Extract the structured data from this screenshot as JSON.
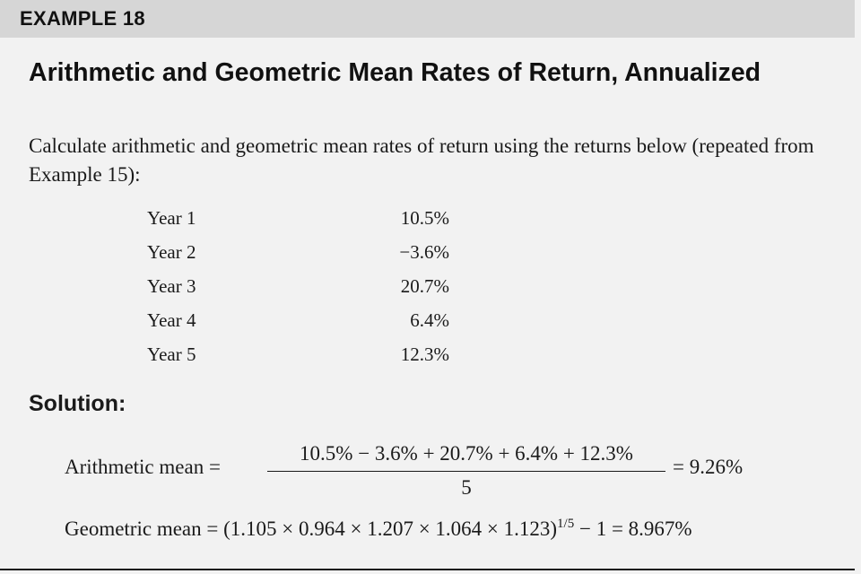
{
  "header": {
    "label": "EXAMPLE 18"
  },
  "title": "Arithmetic and Geometric Mean Rates of Return, Annualized",
  "intro": "Calculate arithmetic and geometric mean rates of return using the returns below (repeated from Example 15):",
  "returns": [
    {
      "year": "Year 1",
      "return": "10.5%"
    },
    {
      "year": "Year 2",
      "return": "−3.6%"
    },
    {
      "year": "Year 3",
      "return": "20.7%"
    },
    {
      "year": "Year 4",
      "return": "6.4%"
    },
    {
      "year": "Year 5",
      "return": "12.3%"
    }
  ],
  "solution": {
    "heading": "Solution:",
    "arithmetic": {
      "label": "Arithmetic mean =",
      "numerator": "10.5% − 3.6% + 20.7% + 6.4% + 12.3%",
      "denominator": "5",
      "result": "= 9.26%"
    },
    "geometric": {
      "label": "Geometric mean =",
      "expression": "(1.105 × 0.964 × 1.207 × 1.064 × 1.123)",
      "exponent": "1/5",
      "result": " − 1 = 8.967%"
    }
  }
}
